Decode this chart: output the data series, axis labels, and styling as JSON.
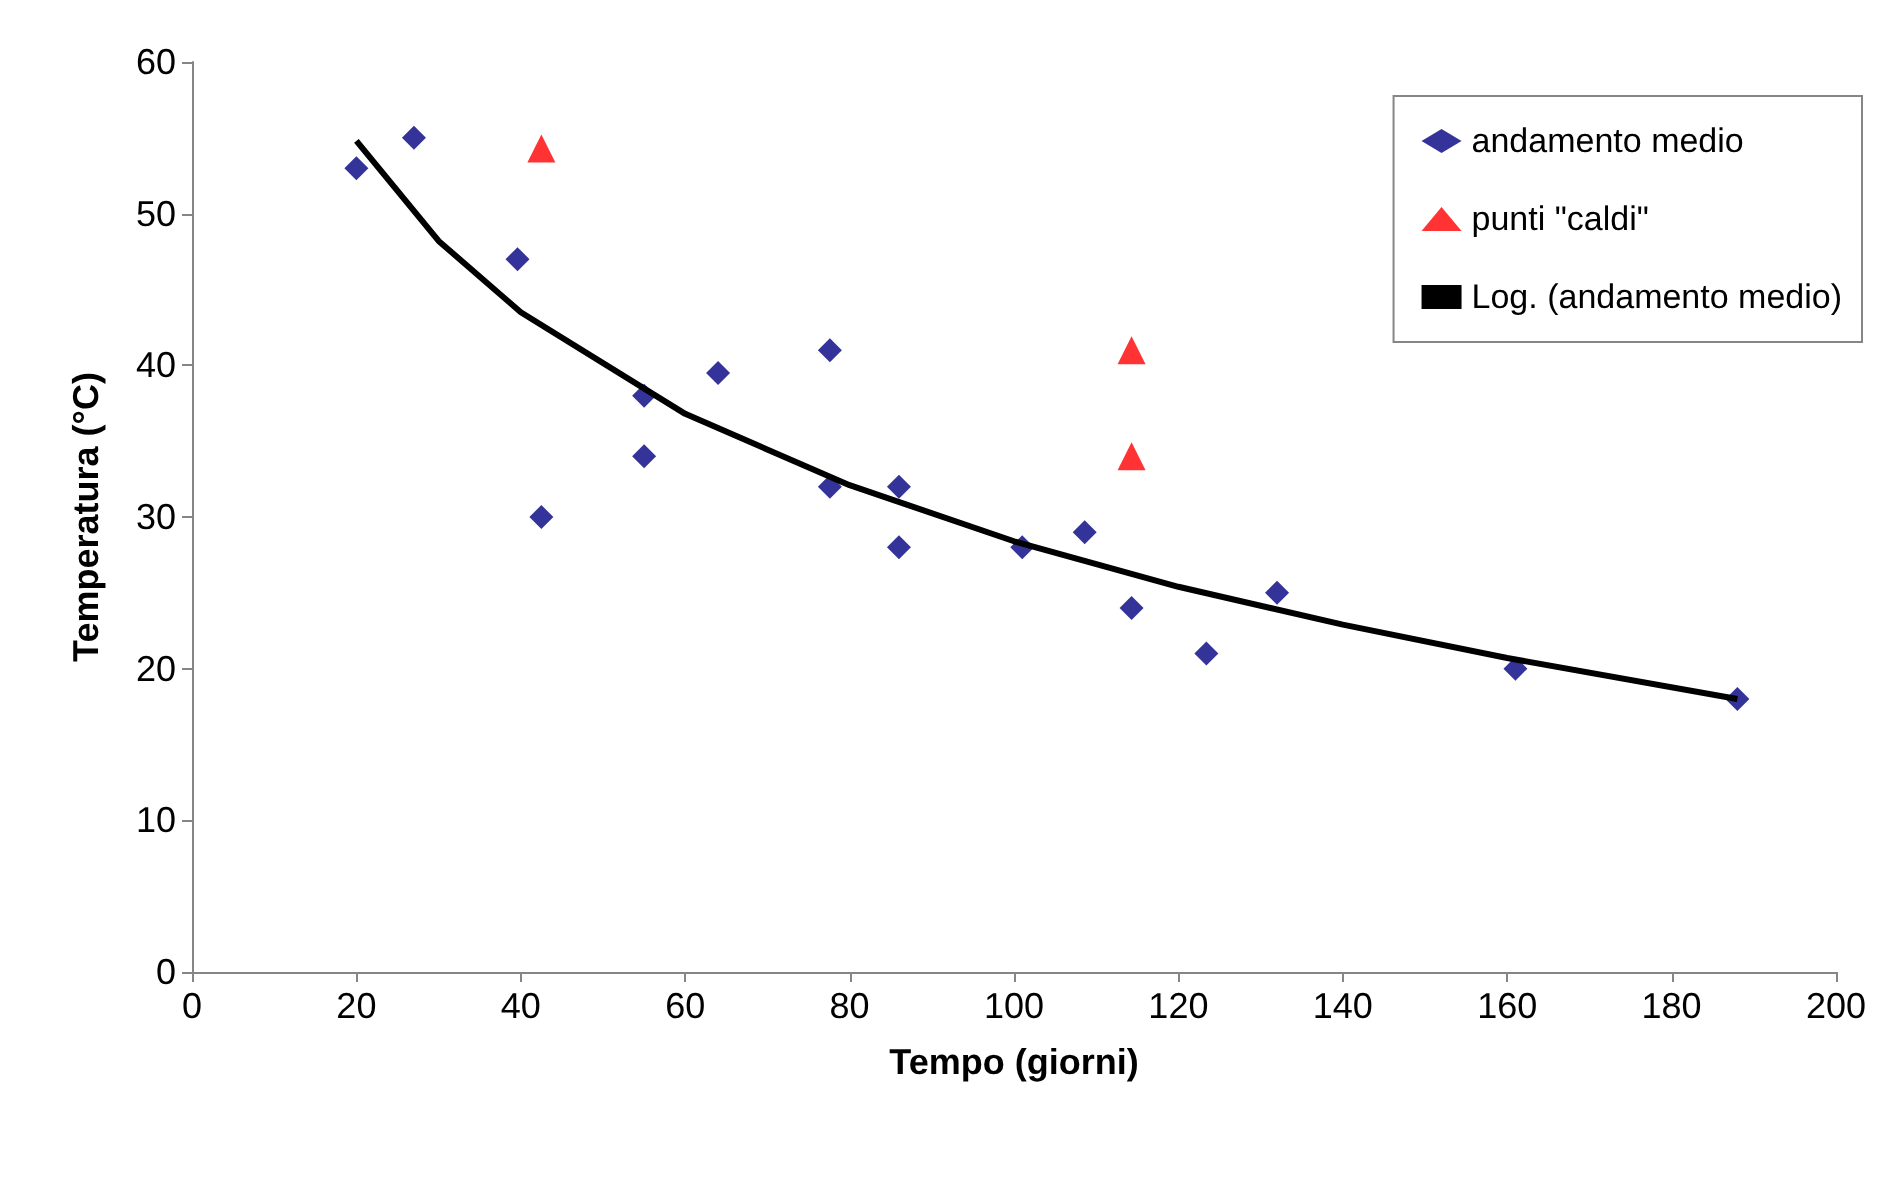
{
  "chart_data": {
    "type": "scatter",
    "xlabel": "Tempo (giorni)",
    "ylabel": "Temperatura (°C)",
    "xlim": [
      0,
      200
    ],
    "xticks": [
      0,
      20,
      40,
      60,
      80,
      100,
      120,
      140,
      160,
      180,
      200
    ],
    "ylim": [
      0,
      60
    ],
    "yticks": [
      0,
      10,
      20,
      30,
      40,
      50,
      60
    ],
    "grid": false,
    "legend": "top right",
    "series": [
      {
        "name": "andamento medio",
        "color": "#000080",
        "marker": "diamond",
        "x": [
          20,
          27,
          39.6,
          42.5,
          55,
          55,
          64,
          77.6,
          77.6,
          86,
          86,
          101,
          108.6,
          114.3,
          123.4,
          132,
          161,
          188
        ],
        "values": [
          53,
          55,
          47,
          30,
          38,
          34,
          39.5,
          41,
          32,
          32,
          28,
          28,
          29,
          24,
          21,
          25,
          20,
          18
        ]
      },
      {
        "name": "punti \"caldi\"",
        "color": "#ff0000",
        "marker": "triangle",
        "x": [
          42.5,
          114.3,
          114.3
        ],
        "values": [
          54.3,
          41,
          34
        ]
      },
      {
        "name": "Log. (andamento medio)",
        "type": "line",
        "color": "#000000",
        "marker": "none",
        "x": [
          20,
          30,
          40,
          60,
          80,
          100,
          120,
          140,
          160,
          188
        ],
        "values": [
          54.8,
          48.2,
          43.5,
          36.8,
          32.1,
          28.4,
          25.4,
          22.9,
          20.7,
          18
        ]
      }
    ]
  }
}
